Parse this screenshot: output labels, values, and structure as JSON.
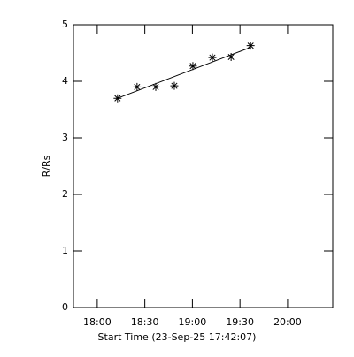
{
  "chart_data": {
    "type": "scatter",
    "xlabel": "Start Time (23-Sep-25 17:42:07)",
    "ylabel": "R/Rs",
    "xlim": [
      1065,
      1228.5
    ],
    "ylim": [
      0,
      5
    ],
    "xticks": [
      {
        "value": 1080,
        "label": "18:00"
      },
      {
        "value": 1110,
        "label": "18:30"
      },
      {
        "value": 1140,
        "label": "19:00"
      },
      {
        "value": 1170,
        "label": "19:30"
      },
      {
        "value": 1200,
        "label": "20:00"
      }
    ],
    "yticks": [
      0,
      1,
      2,
      3,
      4,
      5
    ],
    "series": [
      {
        "marker": "asterisk",
        "color": "#000000",
        "x": [
          1092.8,
          1105.1,
          1116.9,
          1128.6,
          1140.3,
          1152.6,
          1164.4,
          1176.7
        ],
        "values": [
          3.7,
          3.9,
          3.9,
          3.92,
          4.27,
          4.42,
          4.43,
          4.63
        ]
      },
      {
        "marker": "line",
        "color": "#000000",
        "x": [
          1092.8,
          1176.7
        ],
        "values": [
          3.7,
          4.6
        ]
      }
    ]
  }
}
